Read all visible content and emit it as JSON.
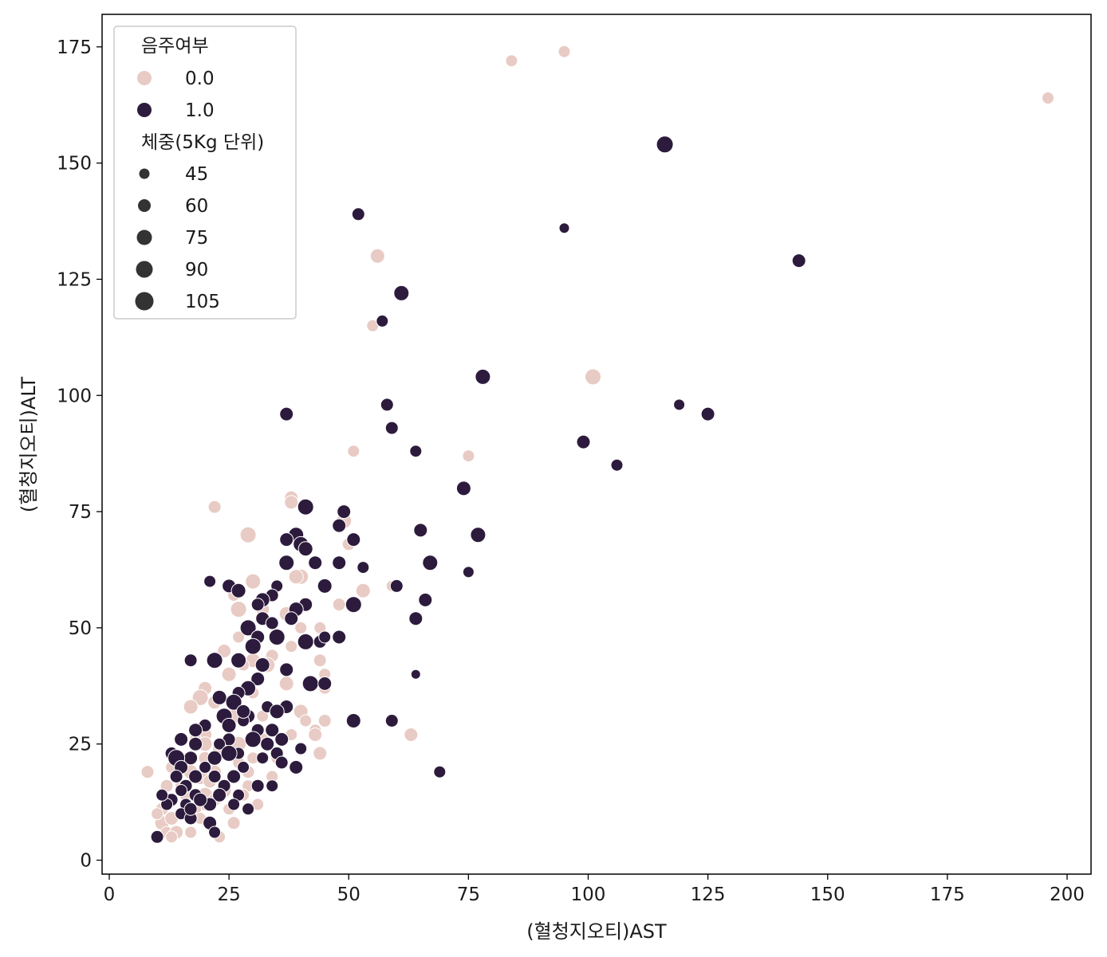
{
  "chart_data": {
    "type": "scatter",
    "xlabel": "(혈청지오티)AST",
    "ylabel": "(혈청지오티)ALT",
    "xlim": [
      -1.5,
      205
    ],
    "ylim": [
      -3,
      182
    ],
    "xticks": [
      "0",
      "25",
      "50",
      "75",
      "100",
      "125",
      "150",
      "175",
      "200"
    ],
    "yticks": [
      "0",
      "25",
      "50",
      "75",
      "100",
      "125",
      "150",
      "175"
    ],
    "grid": false,
    "legend": {
      "placement": "top-left",
      "hue_title": "음주여부",
      "hue_entries": [
        {
          "label": "0.0",
          "color": "#e8cbc4"
        },
        {
          "label": "1.0",
          "color": "#2d1b3d"
        }
      ],
      "size_title": "체중(5Kg 단위)",
      "size_entries": [
        {
          "label": "45",
          "value": 45
        },
        {
          "label": "60",
          "value": 60
        },
        {
          "label": "75",
          "value": 75
        },
        {
          "label": "90",
          "value": 90
        },
        {
          "label": "105",
          "value": 105
        }
      ]
    },
    "series": [
      {
        "drinking": "0.0",
        "color": "#e8cbc4",
        "points": [
          [
            196,
            164,
            60
          ],
          [
            95,
            174,
            60
          ],
          [
            84,
            172,
            60
          ],
          [
            56,
            130,
            75
          ],
          [
            55,
            115,
            60
          ],
          [
            101,
            104,
            85
          ],
          [
            51,
            88,
            60
          ],
          [
            75,
            87,
            60
          ],
          [
            38,
            78,
            70
          ],
          [
            38,
            77,
            70
          ],
          [
            22,
            76,
            65
          ],
          [
            29,
            70,
            85
          ],
          [
            49,
            73,
            80
          ],
          [
            50,
            68,
            65
          ],
          [
            30,
            60,
            80
          ],
          [
            40,
            61,
            80
          ],
          [
            39,
            61,
            75
          ],
          [
            53,
            58,
            75
          ],
          [
            59,
            59,
            55
          ],
          [
            26,
            57,
            60
          ],
          [
            48,
            55,
            65
          ],
          [
            27,
            54,
            85
          ],
          [
            32,
            54,
            70
          ],
          [
            37,
            53,
            75
          ],
          [
            40,
            50,
            60
          ],
          [
            44,
            50,
            60
          ],
          [
            27,
            48,
            60
          ],
          [
            38,
            46,
            60
          ],
          [
            34,
            44,
            65
          ],
          [
            24,
            45,
            70
          ],
          [
            30,
            43,
            75
          ],
          [
            44,
            43,
            65
          ],
          [
            28,
            42,
            60
          ],
          [
            33,
            42,
            80
          ],
          [
            45,
            40,
            60
          ],
          [
            25,
            40,
            75
          ],
          [
            37,
            38,
            75
          ],
          [
            20,
            37,
            70
          ],
          [
            45,
            37,
            60
          ],
          [
            30,
            36,
            60
          ],
          [
            19,
            35,
            85
          ],
          [
            22,
            34,
            70
          ],
          [
            17,
            33,
            75
          ],
          [
            40,
            32,
            75
          ],
          [
            26,
            31,
            70
          ],
          [
            32,
            31,
            60
          ],
          [
            41,
            30,
            60
          ],
          [
            45,
            30,
            65
          ],
          [
            43,
            28,
            60
          ],
          [
            31,
            28,
            75
          ],
          [
            20,
            27,
            70
          ],
          [
            63,
            27,
            70
          ],
          [
            38,
            27,
            60
          ],
          [
            43,
            27,
            70
          ],
          [
            18,
            26,
            60
          ],
          [
            27,
            25,
            80
          ],
          [
            32,
            26,
            65
          ],
          [
            20,
            25,
            75
          ],
          [
            23,
            24,
            70
          ],
          [
            44,
            23,
            70
          ],
          [
            13,
            23,
            60
          ],
          [
            16,
            21,
            70
          ],
          [
            20,
            22,
            65
          ],
          [
            27,
            21,
            60
          ],
          [
            30,
            22,
            60
          ],
          [
            35,
            22,
            60
          ],
          [
            8,
            19,
            65
          ],
          [
            13,
            20,
            60
          ],
          [
            17,
            19,
            75
          ],
          [
            22,
            19,
            70
          ],
          [
            29,
            19,
            65
          ],
          [
            19,
            18,
            85
          ],
          [
            26,
            18,
            70
          ],
          [
            34,
            18,
            60
          ],
          [
            12,
            16,
            65
          ],
          [
            15,
            16,
            60
          ],
          [
            21,
            17,
            70
          ],
          [
            24,
            15,
            75
          ],
          [
            29,
            16,
            60
          ],
          [
            20,
            14,
            80
          ],
          [
            13,
            13,
            70
          ],
          [
            16,
            14,
            65
          ],
          [
            28,
            14,
            60
          ],
          [
            20,
            12,
            65
          ],
          [
            11,
            11,
            65
          ],
          [
            15,
            10,
            70
          ],
          [
            18,
            11,
            60
          ],
          [
            25,
            11,
            60
          ],
          [
            11,
            8,
            75
          ],
          [
            13,
            9,
            70
          ],
          [
            19,
            9,
            60
          ],
          [
            26,
            8,
            65
          ],
          [
            12,
            6,
            60
          ],
          [
            14,
            6,
            70
          ],
          [
            17,
            6,
            60
          ],
          [
            13,
            5,
            60
          ],
          [
            23,
            5,
            60
          ],
          [
            10,
            10,
            60
          ],
          [
            22,
            13,
            65
          ],
          [
            31,
            12,
            60
          ]
        ]
      },
      {
        "drinking": "1.0",
        "color": "#2d1b3d",
        "points": [
          [
            116,
            154,
            90
          ],
          [
            52,
            139,
            65
          ],
          [
            95,
            136,
            50
          ],
          [
            144,
            129,
            70
          ],
          [
            61,
            122,
            80
          ],
          [
            57,
            116,
            60
          ],
          [
            78,
            104,
            80
          ],
          [
            37,
            96,
            70
          ],
          [
            58,
            98,
            65
          ],
          [
            119,
            98,
            55
          ],
          [
            125,
            96,
            70
          ],
          [
            59,
            93,
            65
          ],
          [
            99,
            90,
            70
          ],
          [
            64,
            88,
            60
          ],
          [
            106,
            85,
            60
          ],
          [
            74,
            80,
            75
          ],
          [
            41,
            76,
            85
          ],
          [
            49,
            75,
            70
          ],
          [
            77,
            70,
            80
          ],
          [
            65,
            71,
            70
          ],
          [
            39,
            70,
            80
          ],
          [
            48,
            72,
            70
          ],
          [
            37,
            69,
            70
          ],
          [
            40,
            68,
            80
          ],
          [
            41,
            67,
            75
          ],
          [
            51,
            69,
            70
          ],
          [
            67,
            64,
            80
          ],
          [
            37,
            64,
            80
          ],
          [
            43,
            64,
            70
          ],
          [
            48,
            64,
            70
          ],
          [
            53,
            63,
            60
          ],
          [
            21,
            60,
            60
          ],
          [
            25,
            59,
            70
          ],
          [
            27,
            58,
            75
          ],
          [
            35,
            59,
            60
          ],
          [
            45,
            59,
            75
          ],
          [
            60,
            59,
            65
          ],
          [
            75,
            62,
            55
          ],
          [
            34,
            57,
            65
          ],
          [
            32,
            56,
            75
          ],
          [
            66,
            56,
            70
          ],
          [
            31,
            55,
            65
          ],
          [
            41,
            55,
            70
          ],
          [
            51,
            55,
            85
          ],
          [
            39,
            54,
            75
          ],
          [
            32,
            52,
            70
          ],
          [
            38,
            52,
            70
          ],
          [
            64,
            52,
            70
          ],
          [
            29,
            50,
            85
          ],
          [
            34,
            51,
            65
          ],
          [
            35,
            48,
            85
          ],
          [
            31,
            48,
            70
          ],
          [
            44,
            47,
            65
          ],
          [
            48,
            48,
            70
          ],
          [
            30,
            46,
            85
          ],
          [
            41,
            47,
            85
          ],
          [
            45,
            48,
            60
          ],
          [
            17,
            43,
            65
          ],
          [
            22,
            43,
            85
          ],
          [
            27,
            43,
            80
          ],
          [
            32,
            42,
            75
          ],
          [
            37,
            41,
            70
          ],
          [
            31,
            39,
            70
          ],
          [
            29,
            37,
            80
          ],
          [
            42,
            38,
            85
          ],
          [
            45,
            38,
            70
          ],
          [
            27,
            36,
            65
          ],
          [
            64,
            40,
            45
          ],
          [
            23,
            35,
            75
          ],
          [
            26,
            34,
            85
          ],
          [
            33,
            33,
            60
          ],
          [
            37,
            33,
            70
          ],
          [
            24,
            31,
            85
          ],
          [
            29,
            31,
            70
          ],
          [
            35,
            32,
            75
          ],
          [
            28,
            30,
            60
          ],
          [
            59,
            30,
            65
          ],
          [
            51,
            30,
            75
          ],
          [
            20,
            29,
            65
          ],
          [
            25,
            29,
            75
          ],
          [
            31,
            28,
            65
          ],
          [
            34,
            28,
            70
          ],
          [
            18,
            28,
            70
          ],
          [
            25,
            26,
            65
          ],
          [
            30,
            26,
            85
          ],
          [
            15,
            26,
            70
          ],
          [
            18,
            25,
            70
          ],
          [
            23,
            25,
            60
          ],
          [
            33,
            25,
            70
          ],
          [
            27,
            23,
            60
          ],
          [
            35,
            23,
            65
          ],
          [
            13,
            23,
            65
          ],
          [
            17,
            22,
            70
          ],
          [
            22,
            22,
            75
          ],
          [
            14,
            22,
            90
          ],
          [
            25,
            23,
            85
          ],
          [
            32,
            22,
            60
          ],
          [
            36,
            21,
            65
          ],
          [
            39,
            20,
            70
          ],
          [
            69,
            19,
            60
          ],
          [
            15,
            20,
            70
          ],
          [
            20,
            20,
            60
          ],
          [
            28,
            20,
            60
          ],
          [
            18,
            18,
            70
          ],
          [
            22,
            18,
            65
          ],
          [
            26,
            18,
            70
          ],
          [
            14,
            18,
            65
          ],
          [
            16,
            16,
            65
          ],
          [
            24,
            16,
            65
          ],
          [
            31,
            16,
            65
          ],
          [
            34,
            16,
            60
          ],
          [
            15,
            15,
            60
          ],
          [
            18,
            14,
            65
          ],
          [
            23,
            14,
            70
          ],
          [
            27,
            14,
            60
          ],
          [
            13,
            13,
            65
          ],
          [
            16,
            12,
            60
          ],
          [
            21,
            12,
            70
          ],
          [
            26,
            12,
            60
          ],
          [
            29,
            11,
            60
          ],
          [
            12,
            12,
            60
          ],
          [
            15,
            10,
            60
          ],
          [
            17,
            9,
            65
          ],
          [
            21,
            8,
            70
          ],
          [
            10,
            5,
            65
          ],
          [
            22,
            6,
            60
          ],
          [
            17,
            11,
            65
          ],
          [
            19,
            13,
            70
          ],
          [
            11,
            14,
            60
          ],
          [
            36,
            26,
            70
          ],
          [
            40,
            24,
            60
          ],
          [
            28,
            32,
            70
          ]
        ]
      }
    ]
  }
}
